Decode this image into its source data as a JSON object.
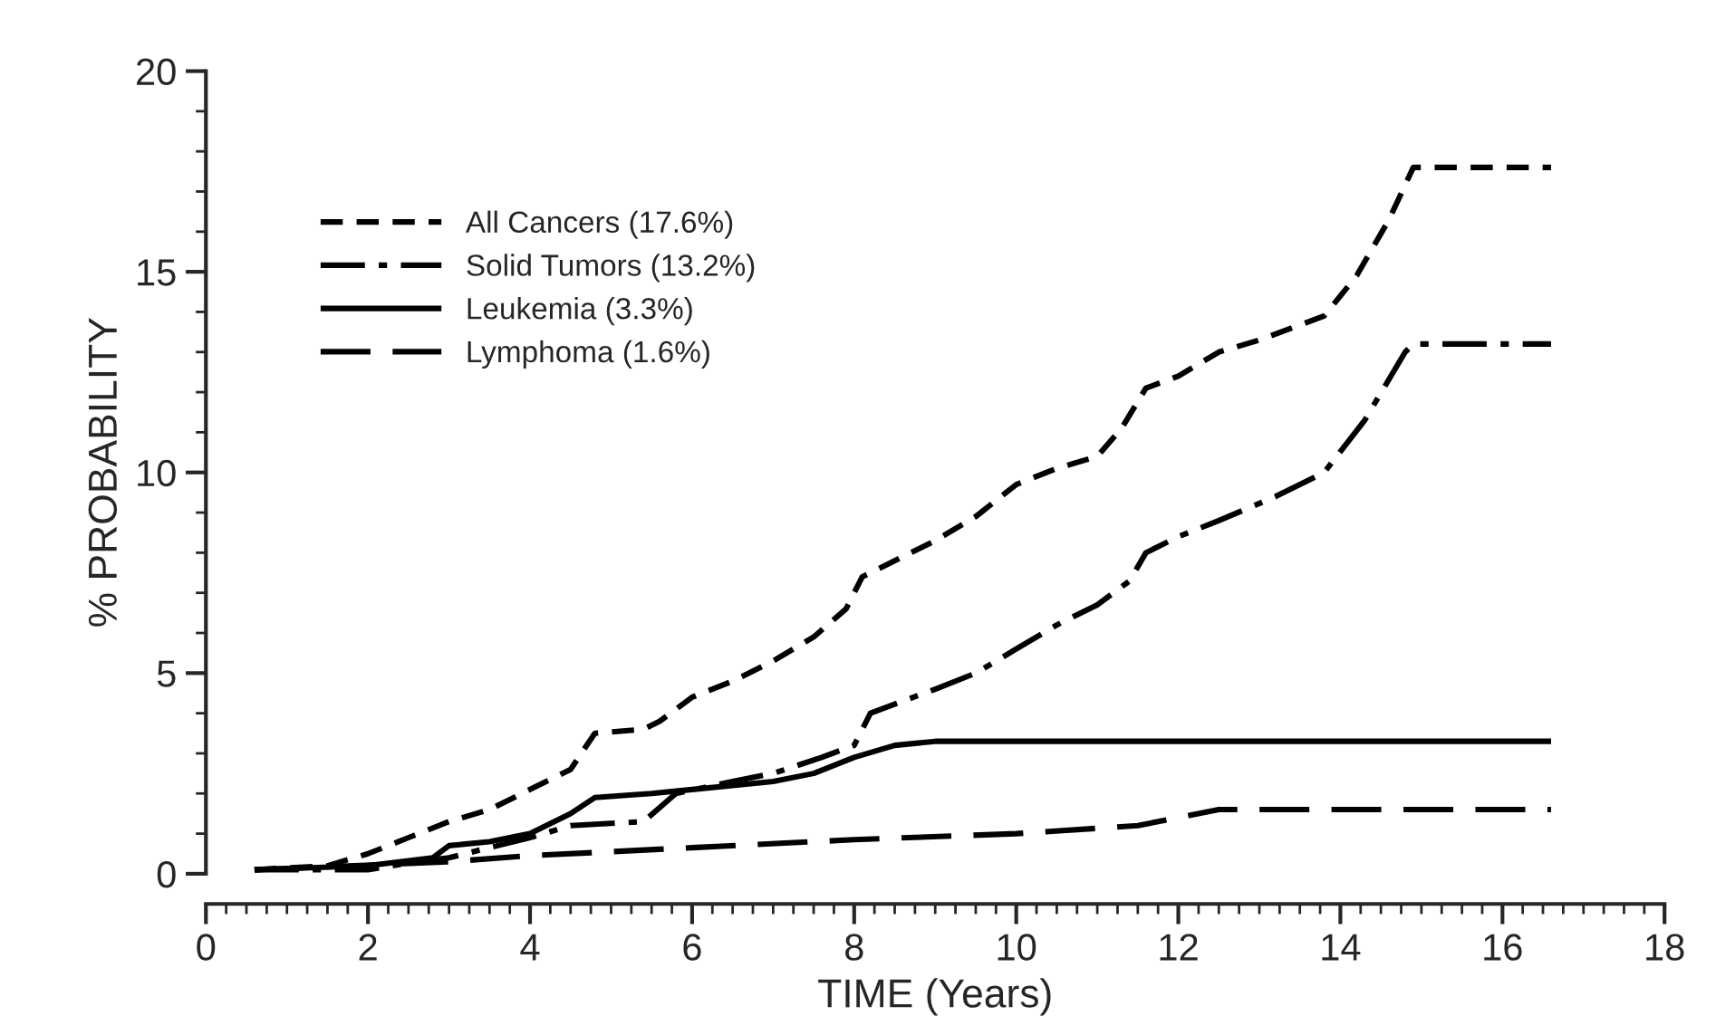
{
  "chart_data": {
    "type": "line",
    "xlabel": "TIME (Years)",
    "ylabel": "% PROBABILITY",
    "xlim": [
      0,
      18
    ],
    "xticks": [
      0,
      2,
      4,
      6,
      8,
      10,
      12,
      14,
      16,
      18
    ],
    "ylim": [
      0,
      20
    ],
    "yticks": [
      0,
      5,
      10,
      15,
      20
    ],
    "grid": false,
    "legend": "top left",
    "marker": "none",
    "series": [
      {
        "name": "All Cancers (17.6%)",
        "color": "#000000",
        "line_style": "dashed",
        "x": [
          0.6,
          1.5,
          2,
          2.5,
          3,
          3.5,
          4,
          4.5,
          4.8,
          5.4,
          5.6,
          6,
          6.5,
          7,
          7.5,
          7.9,
          8.1,
          8.6,
          9,
          9.5,
          10,
          10.5,
          11,
          11.3,
          11.6,
          12,
          12.5,
          13,
          13.8,
          14.2,
          14.6,
          14.9,
          16.6
        ],
        "values": [
          0.1,
          0.2,
          0.5,
          0.9,
          1.3,
          1.6,
          2.1,
          2.6,
          3.5,
          3.6,
          3.8,
          4.4,
          4.8,
          5.3,
          5.9,
          6.6,
          7.4,
          7.9,
          8.3,
          8.9,
          9.7,
          10.1,
          10.4,
          11.1,
          12.1,
          12.4,
          13.0,
          13.3,
          13.9,
          14.9,
          16.3,
          17.6,
          17.6
        ]
      },
      {
        "name": "Solid Tumors (13.2%)",
        "color": "#000000",
        "line_style": "dashdot",
        "x": [
          0.6,
          2,
          2.6,
          3,
          3.6,
          4,
          4.5,
          5.4,
          5.8,
          6.5,
          7,
          7.6,
          8,
          8.2,
          9,
          9.5,
          10,
          10.5,
          11,
          11.4,
          11.6,
          12,
          12.5,
          13.2,
          13.8,
          14.3,
          14.8,
          14.9,
          16.6
        ],
        "values": [
          0.1,
          0.1,
          0.3,
          0.4,
          0.7,
          0.9,
          1.2,
          1.3,
          2.0,
          2.3,
          2.5,
          2.9,
          3.2,
          4.0,
          4.6,
          5.0,
          5.6,
          6.2,
          6.7,
          7.3,
          8.0,
          8.4,
          8.8,
          9.4,
          10.0,
          11.3,
          13.0,
          13.2,
          13.2
        ]
      },
      {
        "name": "Leukemia (3.3%)",
        "color": "#000000",
        "line_style": "solid",
        "x": [
          0.6,
          2,
          2.8,
          3,
          3.5,
          4,
          4.5,
          4.8,
          5.5,
          6,
          7,
          7.5,
          8,
          8.5,
          9,
          16.6
        ],
        "values": [
          0.1,
          0.2,
          0.4,
          0.7,
          0.8,
          1.0,
          1.5,
          1.9,
          2.0,
          2.1,
          2.3,
          2.5,
          2.9,
          3.2,
          3.3,
          3.3
        ]
      },
      {
        "name": "Lymphoma (1.6%)",
        "color": "#000000",
        "line_style": "longdash",
        "x": [
          0.6,
          3,
          4,
          5,
          6,
          8,
          10,
          11.5,
          12,
          12.5,
          16.6
        ],
        "values": [
          0.1,
          0.3,
          0.45,
          0.55,
          0.65,
          0.85,
          1.0,
          1.2,
          1.4,
          1.6,
          1.6
        ]
      }
    ]
  }
}
